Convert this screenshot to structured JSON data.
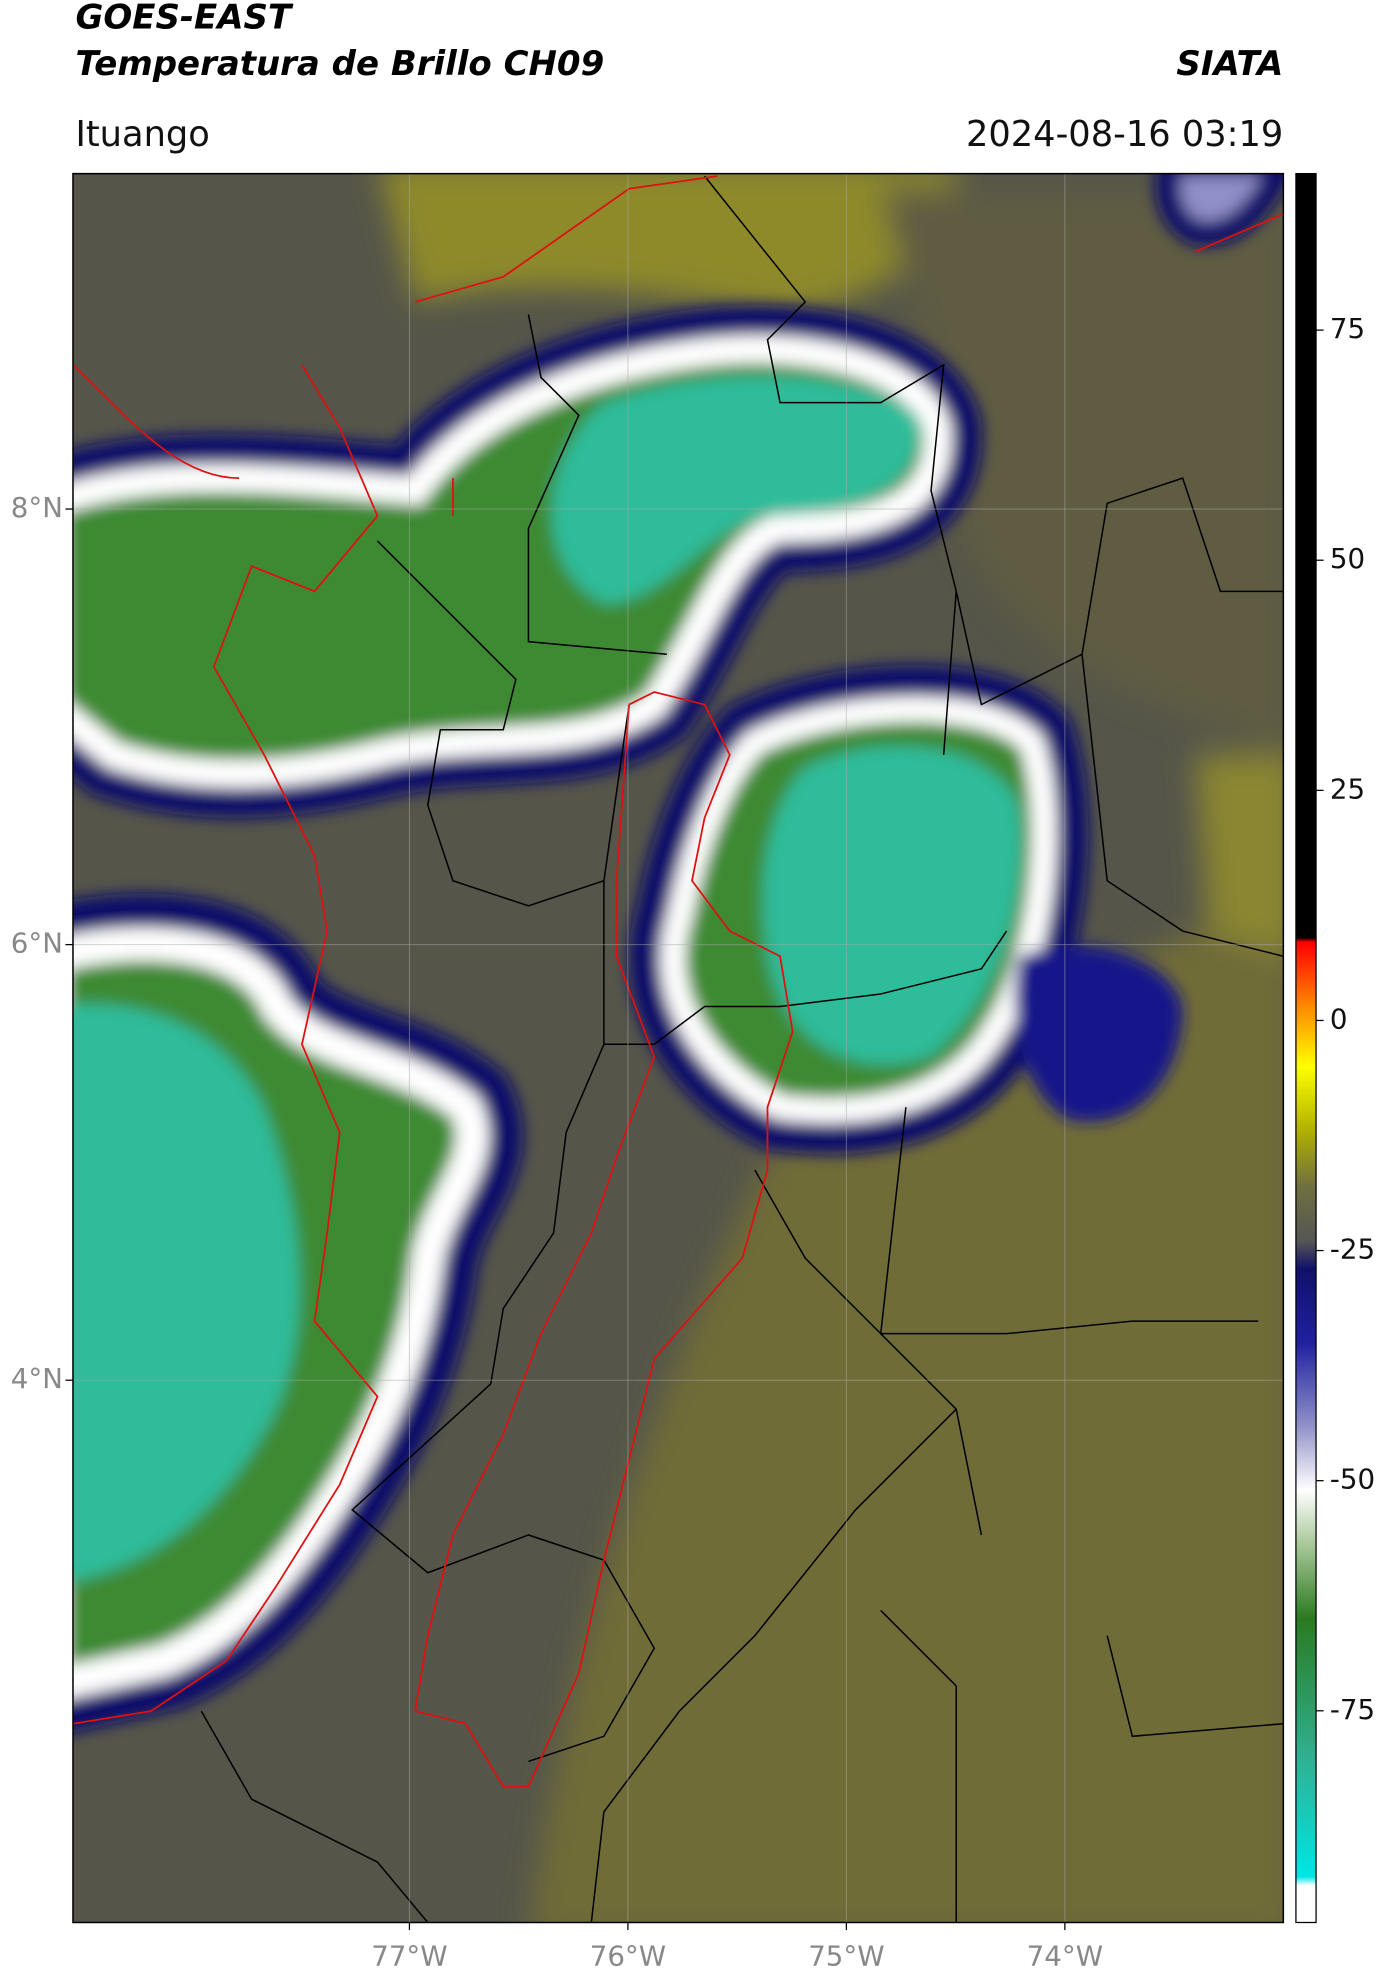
{
  "header": {
    "satellite": "GOES-EAST",
    "product": "Temperatura de Brillo CH09",
    "source": "SIATA",
    "location": "Ituango",
    "datetime": "2024-08-16 03:19"
  },
  "map": {
    "type": "map",
    "latlim": [
      1.51,
      9.54
    ],
    "lonlim": [
      -78.54,
      -73.0
    ],
    "latticks": [
      {
        "value": 8,
        "label": "8°N"
      },
      {
        "value": 6,
        "label": "6°N"
      },
      {
        "value": 4,
        "label": "4°N"
      }
    ],
    "lonticks": [
      {
        "value": -77,
        "label": "77°W"
      },
      {
        "value": -76,
        "label": "76°W"
      },
      {
        "value": -75,
        "label": "75°W"
      },
      {
        "value": -74,
        "label": "74°W"
      }
    ],
    "grid": true
  },
  "colorbar": {
    "clim": [
      -98,
      92
    ],
    "ticks": [
      75,
      50,
      25,
      0,
      -25,
      -50,
      -75
    ],
    "colormap": [
      {
        "value": -98,
        "color": "#ffffff"
      },
      {
        "value": -94,
        "color": "#ffffff"
      },
      {
        "value": -93,
        "color": "#00e5e5"
      },
      {
        "value": -80,
        "color": "#30b090"
      },
      {
        "value": -65,
        "color": "#2a7a20"
      },
      {
        "value": -57,
        "color": "#a8c898"
      },
      {
        "value": -51,
        "color": "#ffffff"
      },
      {
        "value": -44,
        "color": "#9090c8"
      },
      {
        "value": -35,
        "color": "#2020a0"
      },
      {
        "value": -27,
        "color": "#10106a"
      },
      {
        "value": -24,
        "color": "#555555"
      },
      {
        "value": -18,
        "color": "#707040"
      },
      {
        "value": -12,
        "color": "#b0b000"
      },
      {
        "value": -5,
        "color": "#ffff00"
      },
      {
        "value": 2,
        "color": "#ff8000"
      },
      {
        "value": 8.5,
        "color": "#ff0000"
      },
      {
        "value": 9,
        "color": "#000000"
      },
      {
        "value": 92,
        "color": "#000000"
      }
    ]
  }
}
